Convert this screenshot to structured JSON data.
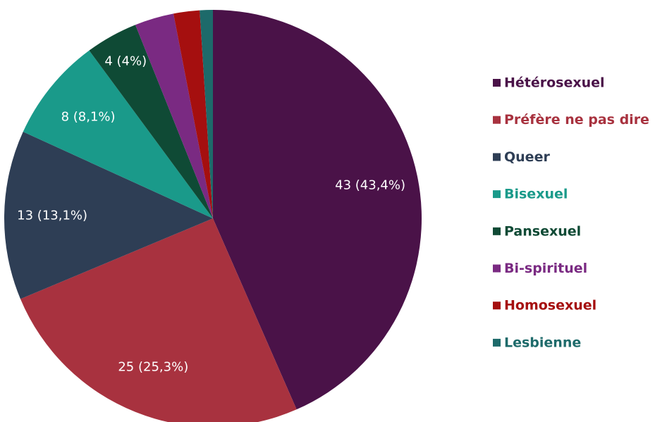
{
  "chart_data": {
    "type": "pie",
    "categories": [
      "Hétérosexuel",
      "Préfère ne pas dire",
      "Queer",
      "Bisexuel",
      "Pansexuel",
      "Bi-spirituel",
      "Homosexuel",
      "Lesbienne"
    ],
    "values": [
      43,
      25,
      13,
      8,
      4,
      3,
      2,
      1
    ],
    "value_labels": [
      "43 (43,4%)",
      "25 (25,3%)",
      "13 (13,1%)",
      "8 (8,1%)",
      "4 (4%)",
      null,
      null,
      null
    ],
    "colors": [
      "#4a1248",
      "#a8323f",
      "#2e3e55",
      "#1a9a8a",
      "#0f4a35",
      "#7a2a82",
      "#a50f0f",
      "#1d6a6a"
    ],
    "legend": "right"
  }
}
